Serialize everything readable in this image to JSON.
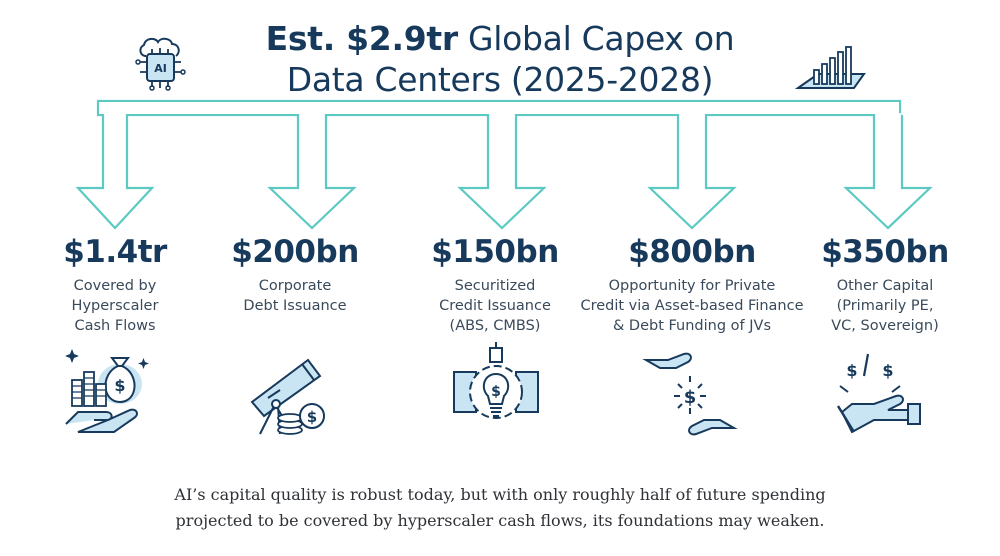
{
  "title": {
    "bold": "Est. $2.9tr",
    "rest": " Global Capex on",
    "line2": "Data Centers (2025-2028)"
  },
  "icons": {
    "left": "ai-chip-icon",
    "right": "bar-growth-icon"
  },
  "columns": [
    {
      "amount": "$1.4tr",
      "description": "Covered by\nHyperscaler\nCash Flows",
      "icon": "money-bag-hand-icon"
    },
    {
      "amount": "$200bn",
      "description": "Corporate\nDebt Issuance",
      "icon": "telescope-coins-icon"
    },
    {
      "amount": "$150bn",
      "description": "Securitized\nCredit Issuance\n(ABS, CMBS)",
      "icon": "lightbulb-gear-icon"
    },
    {
      "amount": "$800bn",
      "description": "Opportunity for Private\nCredit via Asset-based Finance\n& Debt Funding of JVs",
      "icon": "hands-dollar-icon"
    },
    {
      "amount": "$350bn",
      "description": "Other Capital\n(Primarily PE,\nVC, Sovereign)",
      "icon": "hand-dollars-icon"
    }
  ],
  "caption": "AI’s capital quality is robust today, but with only roughly half of future spending\nprojected to be covered by hyperscaler cash flows, its foundations may weaken.",
  "colors": {
    "navy": "#173a5c",
    "teal": "#5cc9c2",
    "lightblue": "#c9e4f2"
  }
}
